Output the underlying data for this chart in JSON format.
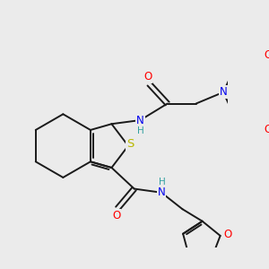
{
  "bg_color": "#ebebeb",
  "bond_color": "#1a1a1a",
  "bond_width": 1.4,
  "atom_colors": {
    "O": "#ff0000",
    "N": "#0000ee",
    "S": "#b8b800",
    "H": "#30a0a0",
    "C": "#1a1a1a"
  },
  "font_size": 8.5,
  "font_size_small": 7.5
}
